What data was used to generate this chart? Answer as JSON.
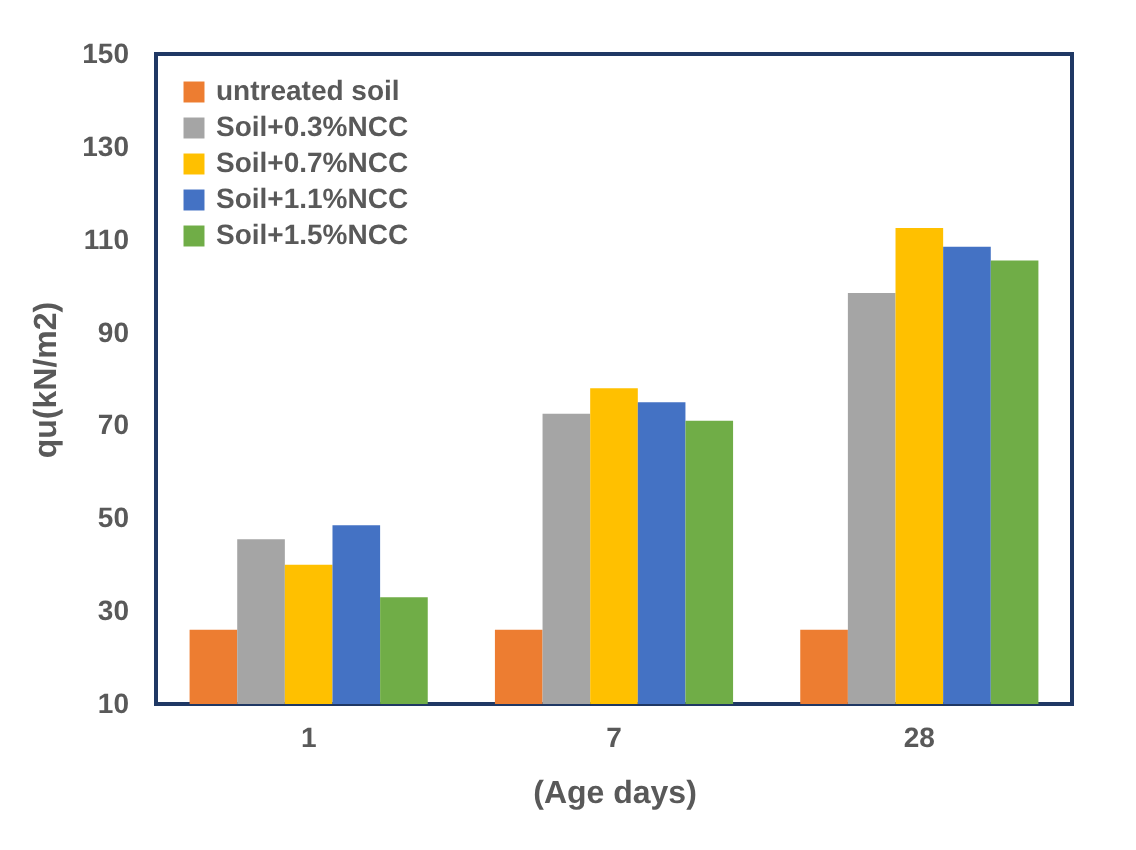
{
  "chart_data": {
    "type": "bar",
    "xlabel": "(Age days)",
    "ylabel": "qu(kN/m2)",
    "categories": [
      "1",
      "7",
      "28"
    ],
    "series": [
      {
        "name": "untreated soil",
        "color": "#ed7d31",
        "values": [
          26,
          26,
          26
        ]
      },
      {
        "name": "Soil+0.3%NCC",
        "color": "#a5a5a5",
        "values": [
          45.5,
          72.5,
          98.5
        ]
      },
      {
        "name": "Soil+0.7%NCC",
        "color": "#ffc000",
        "values": [
          40,
          78,
          112.5
        ]
      },
      {
        "name": "Soil+1.1%NCC",
        "color": "#4472c4",
        "values": [
          48.5,
          75,
          108.5
        ]
      },
      {
        "name": "Soil+1.5%NCC",
        "color": "#70ad47",
        "values": [
          33,
          71,
          105.5
        ]
      }
    ],
    "ylim": [
      10,
      150
    ],
    "yticks": [
      10,
      30,
      50,
      70,
      90,
      110,
      130,
      150
    ],
    "grid": false,
    "legend": "top left"
  }
}
